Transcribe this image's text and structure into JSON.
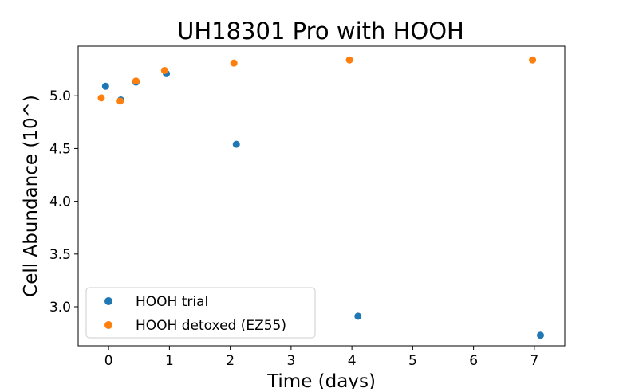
{
  "chart_data": {
    "type": "scatter",
    "title": "UH18301 Pro with HOOH",
    "xlabel": "Time (days)",
    "ylabel": "Cell Abundance (10^)",
    "xlim": [
      -0.5,
      7.5
    ],
    "ylim": [
      2.63,
      5.47
    ],
    "xticks": [
      0,
      1,
      2,
      3,
      4,
      5,
      6,
      7
    ],
    "xtick_labels": [
      "0",
      "1",
      "2",
      "3",
      "4",
      "5",
      "6",
      "7"
    ],
    "yticks": [
      3.0,
      3.5,
      4.0,
      4.5,
      5.0
    ],
    "ytick_labels": [
      "3.0",
      "3.5",
      "4.0",
      "4.5",
      "5.0"
    ],
    "grid": false,
    "legend_position": "lower-left",
    "series": [
      {
        "name": "HOOH trial",
        "color": "#1f77b4",
        "points": [
          {
            "x": -0.05,
            "y": 5.09
          },
          {
            "x": 0.2,
            "y": 4.96
          },
          {
            "x": 0.45,
            "y": 5.13
          },
          {
            "x": 0.95,
            "y": 5.21
          },
          {
            "x": 2.1,
            "y": 4.54
          },
          {
            "x": 4.1,
            "y": 2.91
          },
          {
            "x": 7.1,
            "y": 2.73
          }
        ]
      },
      {
        "name": "HOOH detoxed (EZ55)",
        "color": "#ff7f0e",
        "points": [
          {
            "x": -0.12,
            "y": 4.98
          },
          {
            "x": 0.19,
            "y": 4.95
          },
          {
            "x": 0.45,
            "y": 5.14
          },
          {
            "x": 0.92,
            "y": 5.24
          },
          {
            "x": 2.06,
            "y": 5.31
          },
          {
            "x": 3.96,
            "y": 5.34
          },
          {
            "x": 6.97,
            "y": 5.34
          }
        ]
      }
    ]
  }
}
